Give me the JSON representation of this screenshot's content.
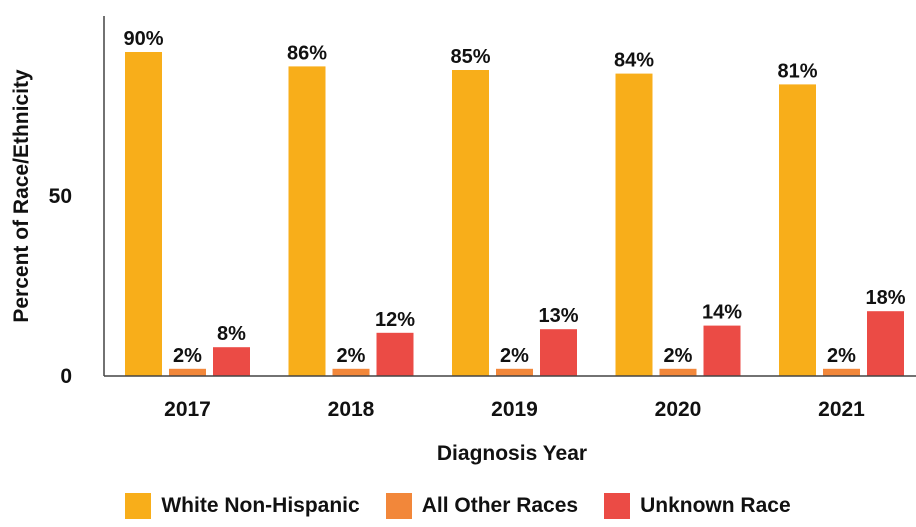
{
  "chart_data": {
    "type": "bar",
    "title": "",
    "xlabel": "Diagnosis Year",
    "ylabel": "Percent of Race/Ethnicity",
    "categories": [
      "2017",
      "2018",
      "2019",
      "2020",
      "2021"
    ],
    "ylim": [
      0,
      100
    ],
    "yticks": [
      0,
      50
    ],
    "grid": false,
    "legend": "bottom",
    "series": [
      {
        "name": "White Non-Hispanic",
        "color": "#F8AE1A",
        "values": [
          90,
          86,
          85,
          84,
          81
        ],
        "labels": [
          "90%",
          "86%",
          "85%",
          "84%",
          "81%"
        ]
      },
      {
        "name": "All Other Races",
        "color": "#F2873A",
        "values": [
          2,
          2,
          2,
          2,
          2
        ],
        "labels": [
          "2%",
          "2%",
          "2%",
          "2%",
          "2%"
        ]
      },
      {
        "name": "Unknown Race",
        "color": "#EB4B45",
        "values": [
          8,
          12,
          13,
          14,
          18
        ],
        "labels": [
          "8%",
          "12%",
          "13%",
          "14%",
          "18%"
        ]
      }
    ]
  }
}
